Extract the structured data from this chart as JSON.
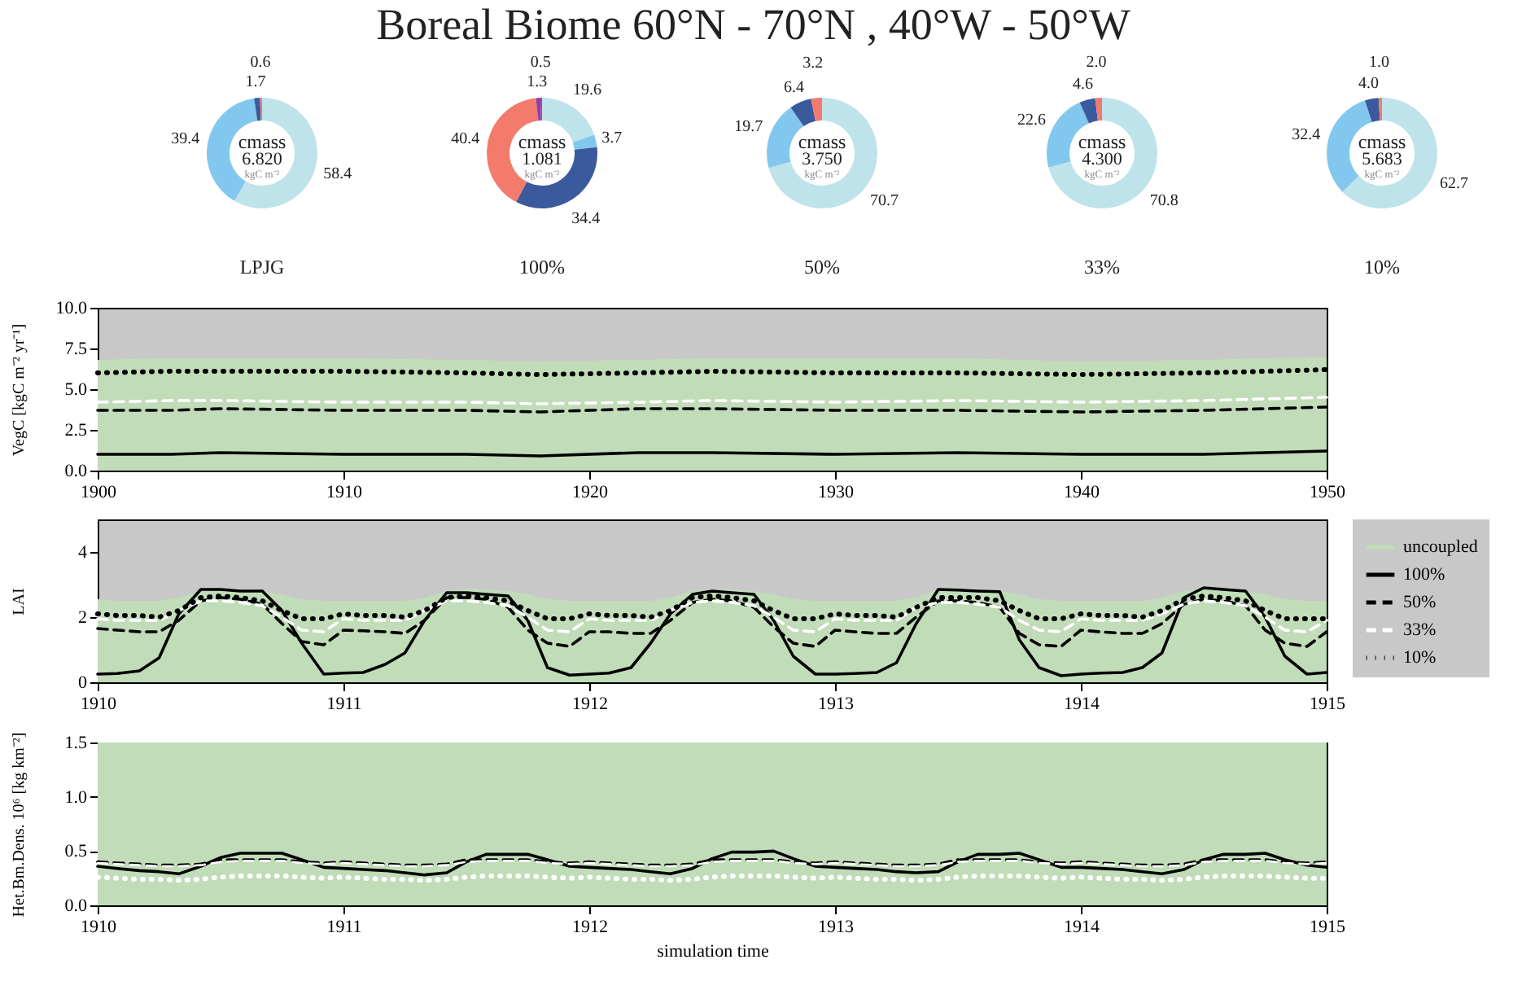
{
  "chart_data": [
    {
      "type": "donut",
      "title": "Boreal Biome 60°N - 70°N , 40°W - 50°W",
      "xlabel": "LPJG",
      "annotations": [
        "cmass",
        "6.820",
        "kgC m⁻²"
      ],
      "categories": [
        null,
        null,
        null,
        null
      ],
      "values": [
        58.4,
        39.4,
        1.7,
        0.6
      ],
      "value_labels": [
        "58.4",
        "39.4",
        "1.7",
        "0.6"
      ],
      "colors": [
        "#bfe3ea",
        "#82c8ee",
        "#3b5a9d",
        "#f27b6c"
      ]
    },
    {
      "type": "donut",
      "xlabel": "100%",
      "annotations": [
        "cmass",
        "1.081",
        "kgC m⁻²"
      ],
      "categories": [
        null,
        null,
        null,
        null,
        null,
        null
      ],
      "values": [
        19.6,
        3.7,
        34.4,
        40.4,
        1.3,
        0.5
      ],
      "value_labels": [
        "19.6",
        "3.7",
        "34.4",
        "40.4",
        "1.3",
        "0.5"
      ],
      "colors": [
        "#bfe3ea",
        "#82c8ee",
        "#3b5a9d",
        "#f27b6c",
        "#8e3fa8",
        "#c0399a"
      ]
    },
    {
      "type": "donut",
      "xlabel": "50%",
      "annotations": [
        "cmass",
        "3.750",
        "kgC m⁻²"
      ],
      "categories": [
        null,
        null,
        null,
        null
      ],
      "values": [
        70.7,
        19.7,
        6.4,
        3.2
      ],
      "value_labels": [
        "70.7",
        "19.7",
        "6.4",
        "3.2"
      ],
      "colors": [
        "#bfe3ea",
        "#82c8ee",
        "#3b5a9d",
        "#f27b6c"
      ]
    },
    {
      "type": "donut",
      "xlabel": "33%",
      "annotations": [
        "cmass",
        "4.300",
        "kgC m⁻²"
      ],
      "categories": [
        null,
        null,
        null,
        null
      ],
      "values": [
        70.8,
        22.6,
        4.6,
        2.0
      ],
      "value_labels": [
        "70.8",
        "22.6",
        "4.6",
        "2.0"
      ],
      "colors": [
        "#bfe3ea",
        "#82c8ee",
        "#3b5a9d",
        "#f27b6c"
      ]
    },
    {
      "type": "donut",
      "xlabel": "10%",
      "annotations": [
        "cmass",
        "5.683",
        "kgC m⁻²"
      ],
      "categories": [
        null,
        null,
        null,
        null
      ],
      "values": [
        62.7,
        32.4,
        4.0,
        1.0
      ],
      "value_labels": [
        "62.7",
        "32.4",
        "4.0",
        "1.0"
      ],
      "colors": [
        "#bfe3ea",
        "#82c8ee",
        "#3b5a9d",
        "#f27b6c"
      ]
    },
    {
      "type": "line",
      "ylabel": "VegC [kgC m⁻² yr⁻¹]",
      "xlim": [
        1900,
        1950
      ],
      "xticks": [
        1900,
        1910,
        1920,
        1930,
        1940,
        1950
      ],
      "ylim": [
        0,
        10
      ],
      "yticks": [
        {
          "value": 0,
          "label": "0.0"
        },
        {
          "value": 2.5,
          "label": "2.5"
        },
        {
          "value": 5,
          "label": "5.0"
        },
        {
          "value": 7.5,
          "label": "7.5"
        },
        {
          "value": 10,
          "label": "10.0"
        }
      ],
      "x": [
        1900,
        1903,
        1905,
        1910,
        1915,
        1918,
        1922,
        1925,
        1930,
        1935,
        1940,
        1945,
        1950
      ],
      "series": [
        {
          "type": "area",
          "color": "#c1dcb8",
          "values": [
            6.8,
            6.9,
            6.9,
            6.9,
            6.8,
            6.7,
            6.8,
            6.9,
            6.9,
            6.9,
            6.7,
            6.8,
            7.0
          ]
        },
        {
          "type": "line",
          "color": "#000000",
          "line_style": "solid",
          "values": [
            1.0,
            1.0,
            1.1,
            1.0,
            1.0,
            0.9,
            1.1,
            1.1,
            1.0,
            1.1,
            1.0,
            1.0,
            1.2
          ]
        },
        {
          "type": "line",
          "color": "#000000",
          "line_style": "dashed",
          "values": [
            3.7,
            3.7,
            3.8,
            3.7,
            3.7,
            3.6,
            3.8,
            3.8,
            3.7,
            3.7,
            3.6,
            3.7,
            3.9
          ]
        },
        {
          "type": "line",
          "color": "#ffffff",
          "line_style": "dashed",
          "values": [
            4.2,
            4.3,
            4.3,
            4.2,
            4.2,
            4.1,
            4.2,
            4.3,
            4.2,
            4.3,
            4.2,
            4.3,
            4.5
          ]
        },
        {
          "type": "line",
          "color": "#000000",
          "line_style": "dotted",
          "values": [
            6.0,
            6.1,
            6.1,
            6.1,
            6.0,
            5.9,
            6.0,
            6.1,
            6.0,
            6.0,
            5.9,
            6.0,
            6.2
          ]
        }
      ]
    },
    {
      "type": "line",
      "ylabel": "LAI",
      "legend": "right",
      "xlim": [
        1910,
        1915
      ],
      "xticks": [
        1910,
        1911,
        1912,
        1913,
        1914,
        1915
      ],
      "ylim": [
        0,
        5
      ],
      "yticks": [
        0,
        2,
        4
      ],
      "x": [
        1910,
        1910.08,
        1910.17,
        1910.25,
        1910.33,
        1910.42,
        1910.5,
        1910.58,
        1910.67,
        1910.75,
        1910.83,
        1910.92,
        1911,
        1911.08,
        1911.17,
        1911.25,
        1911.33,
        1911.42,
        1911.5,
        1911.58,
        1911.67,
        1911.75,
        1911.83,
        1911.92,
        1912,
        1912.08,
        1912.17,
        1912.25,
        1912.33,
        1912.42,
        1912.5,
        1912.58,
        1912.67,
        1912.75,
        1912.83,
        1912.92,
        1913,
        1913.08,
        1913.17,
        1913.25,
        1913.33,
        1913.42,
        1913.5,
        1913.58,
        1913.67,
        1913.75,
        1913.83,
        1913.92,
        1914,
        1914.08,
        1914.17,
        1914.25,
        1914.33,
        1914.42,
        1914.5,
        1914.58,
        1914.67,
        1914.75,
        1914.83,
        1914.92,
        1915
      ],
      "series": [
        {
          "name": "uncoupled",
          "type": "area",
          "color": "#c1dcb8",
          "values": [
            2.55,
            2.5,
            2.5,
            2.5,
            2.6,
            2.8,
            2.85,
            2.85,
            2.8,
            2.7,
            2.55,
            2.5,
            2.5,
            2.5,
            2.5,
            2.5,
            2.6,
            2.8,
            2.85,
            2.85,
            2.8,
            2.7,
            2.55,
            2.5,
            2.5,
            2.5,
            2.5,
            2.5,
            2.6,
            2.8,
            2.85,
            2.85,
            2.8,
            2.7,
            2.55,
            2.5,
            2.5,
            2.5,
            2.5,
            2.5,
            2.6,
            2.85,
            2.85,
            2.85,
            2.8,
            2.7,
            2.55,
            2.5,
            2.5,
            2.5,
            2.5,
            2.5,
            2.6,
            2.8,
            2.9,
            2.85,
            2.8,
            2.7,
            2.55,
            2.5,
            2.5
          ]
        },
        {
          "name": "100%",
          "type": "line",
          "color": "#000000",
          "line_style": "solid",
          "values": [
            0.25,
            0.27,
            0.35,
            0.75,
            2.1,
            2.85,
            2.85,
            2.8,
            2.8,
            2.2,
            1.2,
            0.25,
            0.28,
            0.3,
            0.55,
            0.9,
            1.9,
            2.75,
            2.75,
            2.7,
            2.65,
            1.9,
            0.45,
            0.22,
            0.25,
            0.28,
            0.45,
            1.2,
            2.1,
            2.7,
            2.8,
            2.75,
            2.7,
            1.9,
            0.8,
            0.25,
            0.25,
            0.27,
            0.3,
            0.6,
            1.8,
            2.85,
            2.83,
            2.8,
            2.78,
            1.3,
            0.45,
            0.2,
            0.25,
            0.28,
            0.3,
            0.45,
            0.9,
            2.6,
            2.9,
            2.85,
            2.8,
            2.0,
            0.8,
            0.25,
            0.3
          ]
        },
        {
          "name": "50%",
          "type": "line",
          "color": "#000000",
          "line_style": "dashed",
          "values": [
            1.65,
            1.6,
            1.55,
            1.55,
            1.9,
            2.5,
            2.6,
            2.55,
            2.4,
            1.8,
            1.25,
            1.15,
            1.6,
            1.58,
            1.55,
            1.5,
            1.9,
            2.6,
            2.6,
            2.55,
            2.3,
            1.6,
            1.2,
            1.1,
            1.55,
            1.55,
            1.5,
            1.5,
            1.9,
            2.45,
            2.55,
            2.5,
            2.3,
            1.7,
            1.2,
            1.1,
            1.6,
            1.55,
            1.5,
            1.5,
            2.0,
            2.5,
            2.5,
            2.45,
            2.3,
            1.5,
            1.15,
            1.1,
            1.6,
            1.55,
            1.5,
            1.5,
            1.8,
            2.4,
            2.55,
            2.5,
            2.35,
            1.6,
            1.2,
            1.1,
            1.55
          ]
        },
        {
          "name": "33%",
          "type": "line",
          "color": "#ffffff",
          "line_style": "dashed",
          "values": [
            1.95,
            1.9,
            1.9,
            1.9,
            2.2,
            2.5,
            2.5,
            2.45,
            2.35,
            2.0,
            1.6,
            1.55,
            1.95,
            1.9,
            1.9,
            1.9,
            2.2,
            2.5,
            2.5,
            2.45,
            2.35,
            2.0,
            1.6,
            1.55,
            1.95,
            1.9,
            1.9,
            1.9,
            2.2,
            2.45,
            2.5,
            2.45,
            2.35,
            2.0,
            1.6,
            1.55,
            1.95,
            1.9,
            1.9,
            1.9,
            2.3,
            2.45,
            2.45,
            2.4,
            2.3,
            1.9,
            1.6,
            1.55,
            1.95,
            1.9,
            1.9,
            1.9,
            2.1,
            2.4,
            2.5,
            2.45,
            2.35,
            2.0,
            1.6,
            1.55,
            1.9
          ]
        },
        {
          "name": "10%",
          "type": "line",
          "color": "#000000",
          "line_style": "dotted",
          "values": [
            2.1,
            2.05,
            2.05,
            2.0,
            2.2,
            2.6,
            2.65,
            2.6,
            2.5,
            2.2,
            1.95,
            1.95,
            2.1,
            2.05,
            2.05,
            2.0,
            2.2,
            2.6,
            2.65,
            2.6,
            2.5,
            2.2,
            1.95,
            1.95,
            2.1,
            2.05,
            2.05,
            2.0,
            2.2,
            2.6,
            2.65,
            2.6,
            2.5,
            2.2,
            1.95,
            1.95,
            2.1,
            2.05,
            2.05,
            2.0,
            2.3,
            2.6,
            2.6,
            2.6,
            2.5,
            2.2,
            1.95,
            1.95,
            2.1,
            2.05,
            2.05,
            2.0,
            2.2,
            2.55,
            2.65,
            2.6,
            2.5,
            2.2,
            1.95,
            1.95,
            1.95
          ]
        }
      ]
    },
    {
      "type": "line",
      "ylabel": "Het.Bm.Dens. 10⁶ [kg km⁻²]",
      "xlabel": "simulation time",
      "xlim": [
        1910,
        1915
      ],
      "xticks": [
        1910,
        1911,
        1912,
        1913,
        1914,
        1915
      ],
      "ylim": [
        0,
        1.5
      ],
      "yticks": [
        {
          "value": 0,
          "label": "0.0"
        },
        {
          "value": 0.5,
          "label": "0.5"
        },
        {
          "value": 1,
          "label": "1.0"
        },
        {
          "value": 1.5,
          "label": "1.5"
        }
      ],
      "bands": [
        {
          "axis": "y",
          "from": 0,
          "to": 1.5,
          "color": "#c1dcb8"
        }
      ],
      "x": [
        1910,
        1910.08,
        1910.17,
        1910.25,
        1910.33,
        1910.42,
        1910.5,
        1910.58,
        1910.67,
        1910.75,
        1910.83,
        1910.92,
        1911,
        1911.08,
        1911.17,
        1911.25,
        1911.33,
        1911.42,
        1911.5,
        1911.58,
        1911.67,
        1911.75,
        1911.83,
        1911.92,
        1912,
        1912.08,
        1912.17,
        1912.25,
        1912.33,
        1912.42,
        1912.5,
        1912.58,
        1912.67,
        1912.75,
        1912.83,
        1912.92,
        1913,
        1913.08,
        1913.17,
        1913.25,
        1913.33,
        1913.42,
        1913.5,
        1913.58,
        1913.67,
        1913.75,
        1913.83,
        1913.92,
        1914,
        1914.08,
        1914.17,
        1914.25,
        1914.33,
        1914.42,
        1914.5,
        1914.58,
        1914.67,
        1914.75,
        1914.83,
        1914.92,
        1915
      ],
      "series": [
        {
          "type": "line",
          "color": "#000000",
          "line_style": "solid",
          "values": [
            0.36,
            0.34,
            0.32,
            0.31,
            0.29,
            0.36,
            0.44,
            0.48,
            0.48,
            0.48,
            0.42,
            0.35,
            0.34,
            0.33,
            0.32,
            0.3,
            0.28,
            0.3,
            0.4,
            0.47,
            0.47,
            0.47,
            0.42,
            0.36,
            0.35,
            0.34,
            0.33,
            0.31,
            0.29,
            0.34,
            0.43,
            0.49,
            0.49,
            0.5,
            0.43,
            0.36,
            0.35,
            0.34,
            0.33,
            0.31,
            0.3,
            0.31,
            0.4,
            0.47,
            0.47,
            0.48,
            0.42,
            0.35,
            0.35,
            0.34,
            0.33,
            0.31,
            0.29,
            0.33,
            0.42,
            0.47,
            0.47,
            0.48,
            0.42,
            0.37,
            0.35
          ]
        },
        {
          "type": "line",
          "color": "#000000",
          "line_style": "dashed",
          "values": [
            0.4,
            0.39,
            0.38,
            0.37,
            0.37,
            0.38,
            0.42,
            0.42,
            0.42,
            0.42,
            0.4,
            0.39,
            0.4,
            0.39,
            0.38,
            0.37,
            0.37,
            0.38,
            0.42,
            0.42,
            0.42,
            0.42,
            0.4,
            0.39,
            0.4,
            0.39,
            0.38,
            0.37,
            0.37,
            0.38,
            0.42,
            0.42,
            0.42,
            0.42,
            0.4,
            0.39,
            0.4,
            0.39,
            0.38,
            0.37,
            0.37,
            0.38,
            0.42,
            0.42,
            0.42,
            0.42,
            0.4,
            0.39,
            0.4,
            0.39,
            0.38,
            0.37,
            0.37,
            0.38,
            0.42,
            0.42,
            0.42,
            0.42,
            0.4,
            0.39,
            0.4
          ]
        },
        {
          "type": "line",
          "color": "#ffffff",
          "line_style": "dashed",
          "values": [
            0.39,
            0.38,
            0.37,
            0.36,
            0.36,
            0.37,
            0.4,
            0.41,
            0.41,
            0.41,
            0.39,
            0.38,
            0.39,
            0.38,
            0.37,
            0.36,
            0.36,
            0.37,
            0.4,
            0.41,
            0.41,
            0.41,
            0.39,
            0.38,
            0.39,
            0.38,
            0.37,
            0.36,
            0.36,
            0.37,
            0.4,
            0.41,
            0.41,
            0.41,
            0.39,
            0.38,
            0.39,
            0.38,
            0.37,
            0.36,
            0.36,
            0.37,
            0.4,
            0.41,
            0.41,
            0.41,
            0.39,
            0.38,
            0.39,
            0.38,
            0.37,
            0.36,
            0.36,
            0.37,
            0.4,
            0.41,
            0.41,
            0.41,
            0.39,
            0.38,
            0.39
          ]
        },
        {
          "type": "line",
          "color": "#ffffff",
          "line_style": "dotted",
          "values": [
            0.26,
            0.25,
            0.24,
            0.24,
            0.23,
            0.24,
            0.26,
            0.27,
            0.27,
            0.27,
            0.26,
            0.25,
            0.26,
            0.25,
            0.24,
            0.24,
            0.23,
            0.24,
            0.26,
            0.27,
            0.27,
            0.27,
            0.26,
            0.25,
            0.26,
            0.25,
            0.24,
            0.24,
            0.23,
            0.24,
            0.26,
            0.27,
            0.27,
            0.27,
            0.26,
            0.25,
            0.26,
            0.25,
            0.24,
            0.24,
            0.23,
            0.24,
            0.26,
            0.27,
            0.27,
            0.27,
            0.26,
            0.25,
            0.26,
            0.25,
            0.24,
            0.24,
            0.23,
            0.24,
            0.26,
            0.27,
            0.27,
            0.27,
            0.26,
            0.25,
            0.25
          ]
        }
      ]
    }
  ]
}
